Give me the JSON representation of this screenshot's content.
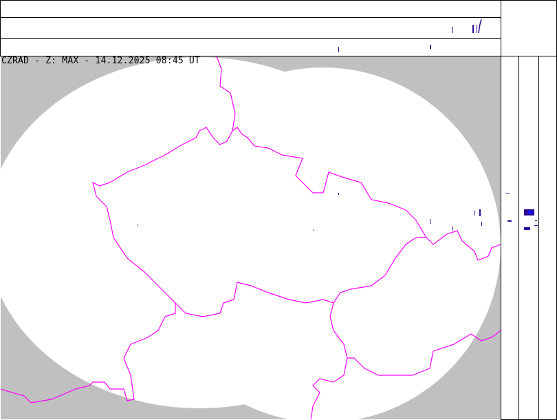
{
  "map": {
    "title": "CZRAD - Z: MAX - 14.12.2025 08:45 UT",
    "colors": {
      "background_outside_coverage": "#c0c0c0",
      "coverage": "#ffffff",
      "borders": "#ff00ff",
      "echo": "#2a0a9a",
      "echo_strong": "#1010ff",
      "frame": "#000000"
    }
  },
  "panels": {
    "top_profile": "north-south max projection",
    "right_profile": "east-west max projection"
  }
}
